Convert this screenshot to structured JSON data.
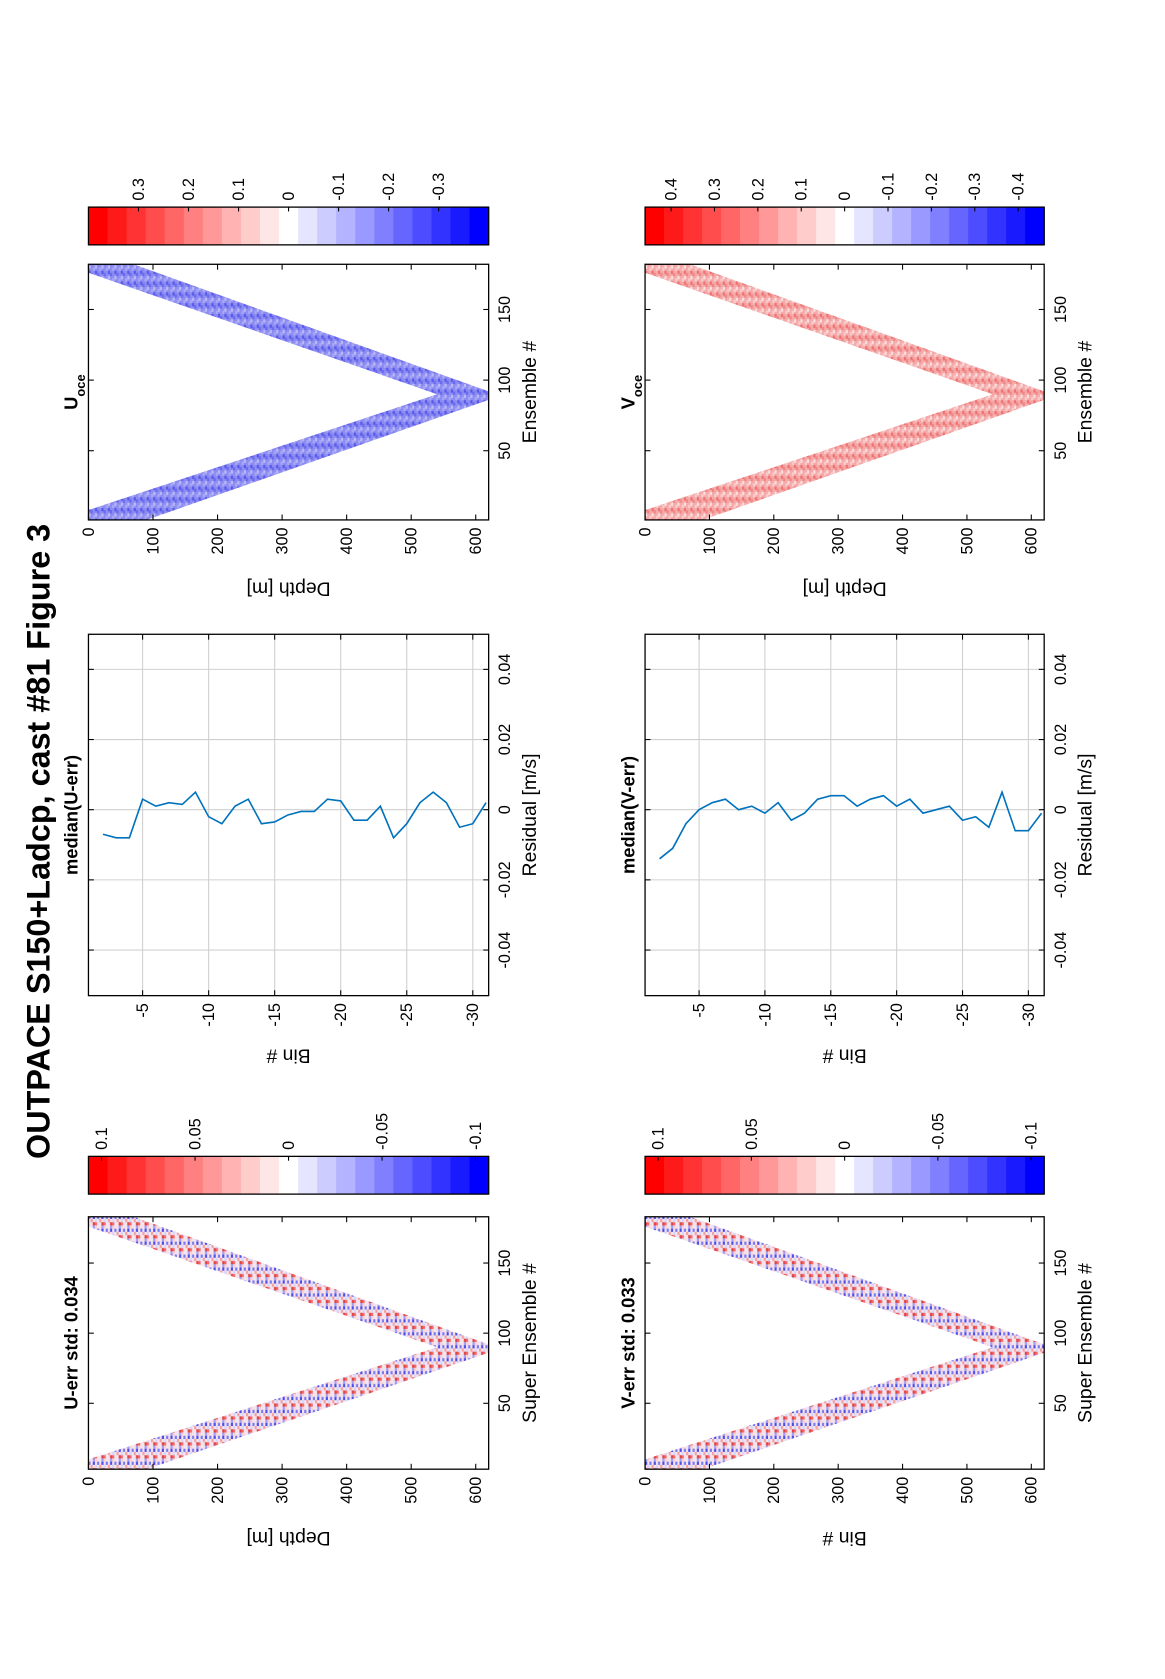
{
  "title": "OUTPACE S150+Ladcp, cast #81  Figure 3",
  "chart_data": [
    {
      "type": "heatmap",
      "title": "U-err std: 0.034",
      "x_label": "Super Ensemble #",
      "y_label": "Depth [m]",
      "xlim": [
        3,
        183
      ],
      "ylim": [
        0,
        620
      ],
      "y_direction": "reverse",
      "xticks": [
        50,
        100,
        150
      ],
      "yticks": [
        0,
        100,
        200,
        300,
        400,
        500,
        600
      ],
      "colorbar": {
        "clim": [
          -0.107,
          0.107
        ],
        "ticks": [
          0.1,
          0.05,
          0,
          -0.05,
          -0.1
        ],
        "colors": [
          "#ff0000",
          "#ffffff",
          "#0000ff"
        ],
        "levels": 21
      }
    },
    {
      "type": "line",
      "title": "median(U-err)",
      "x_label": "Residual [m/s]",
      "y_label": "Bin #",
      "xlim": [
        -0.053,
        0.05
      ],
      "ylim": [
        -31.2,
        -0.9
      ],
      "xticks": [
        -0.04,
        -0.02,
        0,
        0.02,
        0.04
      ],
      "yticks": [
        -5,
        -10,
        -15,
        -20,
        -25,
        -30
      ],
      "grid": true,
      "y": [
        -2,
        -3,
        -4,
        -5,
        -6,
        -7,
        -8,
        -9,
        -10,
        -11,
        -12,
        -13,
        -14,
        -15,
        -16,
        -17,
        -18,
        -19,
        -20,
        -21,
        -22,
        -23,
        -24,
        -25,
        -26,
        -27,
        -28,
        -29,
        -30,
        -31
      ],
      "series": [
        {
          "color": "#0072bd",
          "values": [
            -0.007,
            -0.008,
            -0.008,
            0.003,
            0.001,
            0.002,
            0.0015,
            0.005,
            -0.002,
            -0.004,
            0.001,
            0.003,
            -0.004,
            -0.0035,
            -0.0015,
            -0.0005,
            -0.0005,
            0.003,
            0.0025,
            -0.003,
            -0.003,
            0.001,
            -0.008,
            -0.004,
            0.002,
            0.005,
            0.002,
            -0.005,
            -0.004,
            0.002
          ]
        }
      ]
    },
    {
      "type": "heatmap",
      "title": "U",
      "title_sub": "oce",
      "x_label": "Ensemble #",
      "y_label": "Depth [m]",
      "xlim": [
        1,
        182
      ],
      "ylim": [
        0,
        620
      ],
      "y_direction": "reverse",
      "xticks": [
        50,
        100,
        150
      ],
      "yticks": [
        0,
        100,
        200,
        300,
        400,
        500,
        600
      ],
      "colorbar": {
        "clim": [
          -0.4,
          0.4
        ],
        "ticks": [
          0.3,
          0.2,
          0.1,
          0,
          -0.1,
          -0.2,
          -0.3
        ],
        "colors": [
          "#ff0000",
          "#ffffff",
          "#0000ff"
        ],
        "levels": 21
      }
    },
    {
      "type": "heatmap",
      "title": "V-err std: 0.033",
      "x_label": "Super Ensemble #",
      "y_label": "Bin #",
      "xlim": [
        3,
        183
      ],
      "ylim": [
        0,
        620
      ],
      "y_direction": "reverse",
      "xticks": [
        50,
        100,
        150
      ],
      "yticks": [
        0,
        100,
        200,
        300,
        400,
        500,
        600
      ],
      "colorbar": {
        "clim": [
          -0.107,
          0.107
        ],
        "ticks": [
          0.1,
          0.05,
          0,
          -0.05,
          -0.1
        ],
        "colors": [
          "#ff0000",
          "#ffffff",
          "#0000ff"
        ],
        "levels": 21
      }
    },
    {
      "type": "line",
      "title": "median(V-err)",
      "x_label": "Residual [m/s]",
      "y_label": "Bin #",
      "xlim": [
        -0.053,
        0.05
      ],
      "ylim": [
        -31.2,
        -0.9
      ],
      "xticks": [
        -0.04,
        -0.02,
        0,
        0.02,
        0.04
      ],
      "yticks": [
        -5,
        -10,
        -15,
        -20,
        -25,
        -30
      ],
      "grid": true,
      "y": [
        -2,
        -3,
        -4,
        -5,
        -6,
        -7,
        -8,
        -9,
        -10,
        -11,
        -12,
        -13,
        -14,
        -15,
        -16,
        -17,
        -18,
        -19,
        -20,
        -21,
        -22,
        -23,
        -24,
        -25,
        -26,
        -27,
        -28,
        -29,
        -30,
        -31
      ],
      "series": [
        {
          "color": "#0072bd",
          "values": [
            -0.014,
            -0.011,
            -0.004,
            0.0,
            0.002,
            0.003,
            0.0,
            0.001,
            -0.001,
            0.002,
            -0.003,
            -0.001,
            0.003,
            0.004,
            0.004,
            0.001,
            0.003,
            0.004,
            0.001,
            0.003,
            -0.001,
            0.0,
            0.001,
            -0.003,
            -0.002,
            -0.005,
            0.005,
            -0.006,
            -0.006,
            -0.001
          ]
        }
      ]
    },
    {
      "type": "heatmap",
      "title": "V",
      "title_sub": "oce",
      "x_label": "Ensemble #",
      "y_label": "Depth [m]",
      "xlim": [
        1,
        182
      ],
      "ylim": [
        0,
        620
      ],
      "y_direction": "reverse",
      "xticks": [
        50,
        100,
        150
      ],
      "yticks": [
        0,
        100,
        200,
        300,
        400,
        500,
        600
      ],
      "colorbar": {
        "clim": [
          -0.46,
          0.46
        ],
        "ticks": [
          0.4,
          0.3,
          0.2,
          0.1,
          0,
          -0.1,
          -0.2,
          -0.3,
          -0.4
        ],
        "colors": [
          "#ff0000",
          "#ffffff",
          "#0000ff"
        ],
        "levels": 21
      }
    }
  ]
}
